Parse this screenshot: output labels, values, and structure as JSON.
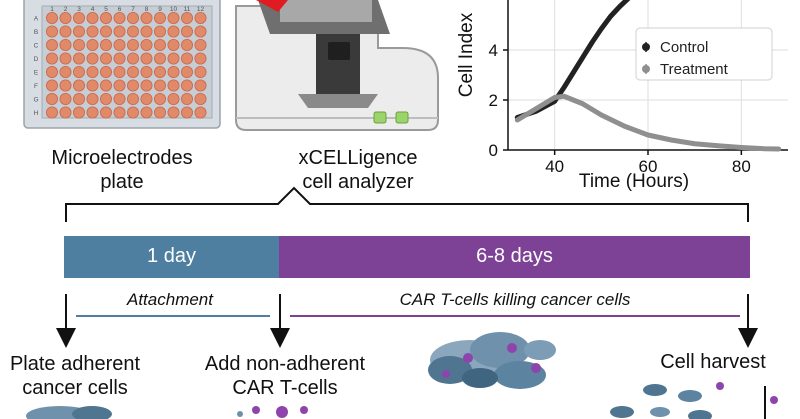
{
  "plate": {
    "col_numbers": [
      "1",
      "2",
      "3",
      "4",
      "5",
      "6",
      "7",
      "8",
      "9",
      "10",
      "11",
      "12"
    ],
    "row_letters": [
      "A",
      "B",
      "C",
      "D",
      "E",
      "F",
      "G",
      "H"
    ],
    "caption_line1": "Microelectrodes",
    "caption_line2": "plate"
  },
  "analyzer": {
    "caption_line1": "xCELLigence",
    "caption_line2": "cell analyzer"
  },
  "chart_data": {
    "type": "line",
    "xlabel": "Time (Hours)",
    "ylabel": "Cell Index",
    "xlim": [
      30,
      90
    ],
    "ylim": [
      0,
      6
    ],
    "xticks": [
      "40",
      "60",
      "80"
    ],
    "yticks": [
      "0",
      "2",
      "4"
    ],
    "legend_position": "right",
    "series": [
      {
        "name": "Control",
        "color": "#222222",
        "x": [
          32,
          36,
          40,
          42,
          44,
          46,
          48,
          50,
          52,
          54,
          56
        ],
        "values": [
          1.3,
          1.55,
          1.95,
          2.5,
          3.1,
          3.7,
          4.3,
          4.85,
          5.35,
          5.75,
          6.1
        ]
      },
      {
        "name": "Treatment",
        "color": "#8f8f8f",
        "x": [
          32,
          36,
          40,
          42,
          46,
          50,
          55,
          60,
          65,
          70,
          75,
          80,
          85,
          88
        ],
        "values": [
          1.2,
          1.65,
          2.1,
          2.15,
          1.85,
          1.4,
          0.95,
          0.6,
          0.4,
          0.25,
          0.17,
          0.1,
          0.05,
          0.04
        ]
      }
    ]
  },
  "timeline": {
    "segments": [
      {
        "label": "1 day",
        "color": "#4e7ea0"
      },
      {
        "label": "6-8 days",
        "color": "#7d4296"
      }
    ],
    "phases": [
      "Attachment",
      "CAR T-cells killing cancer cells"
    ]
  },
  "steps": [
    {
      "line1": "Plate adherent",
      "line2": "cancer cells"
    },
    {
      "line1": "Add non-adherent",
      "line2": "CAR T-cells"
    },
    {
      "line1": "Cell harvest"
    }
  ]
}
